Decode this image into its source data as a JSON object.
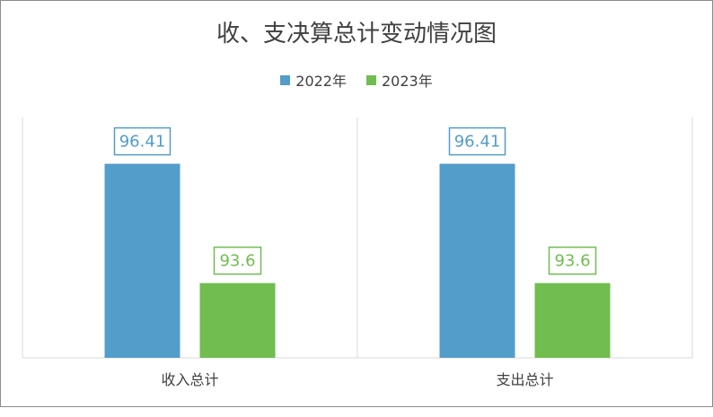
{
  "chart_data": {
    "type": "bar",
    "title": "收、支决算总计变动情况图",
    "categories": [
      "收入总计",
      "支出总计"
    ],
    "series": [
      {
        "name": "2022年",
        "values": [
          96.41,
          96.41
        ],
        "color": "#539dcb"
      },
      {
        "name": "2023年",
        "values": [
          93.6,
          93.6
        ],
        "color": "#71bd50"
      }
    ],
    "data_labels": [
      [
        "96.41",
        "96.41"
      ],
      [
        "93.6",
        "93.6"
      ]
    ],
    "xlabel": "",
    "ylabel": "",
    "ylim": [
      91.84,
      97.5
    ],
    "grid": false,
    "legend_position": "top-center"
  }
}
